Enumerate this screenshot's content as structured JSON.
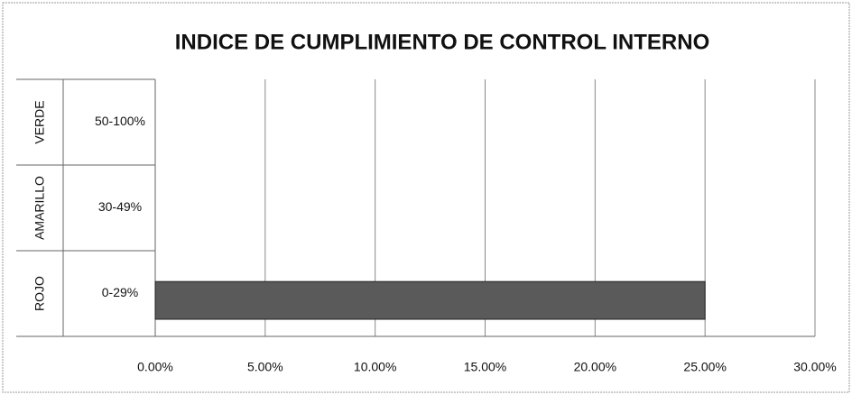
{
  "chart_data": {
    "type": "hbar",
    "title": "INDICE DE CUMPLIMIENTO DE CONTROL INTERNO",
    "groups": [
      "VERDE",
      "AMARILLO",
      "ROJO"
    ],
    "categories": [
      "50-100%",
      "30-49%",
      "0-29%"
    ],
    "values": [
      0,
      0,
      25
    ],
    "color": "#5a5a5a",
    "xlim": [
      0,
      30
    ],
    "xticks": [
      {
        "value": 0,
        "label": "0.00%"
      },
      {
        "value": 5,
        "label": "5.00%"
      },
      {
        "value": 10,
        "label": "10.00%"
      },
      {
        "value": 15,
        "label": "15.00%"
      },
      {
        "value": 20,
        "label": "20.00%"
      },
      {
        "value": 25,
        "label": "25.00%"
      },
      {
        "value": 30,
        "label": "30.00%"
      }
    ],
    "grid": true
  }
}
